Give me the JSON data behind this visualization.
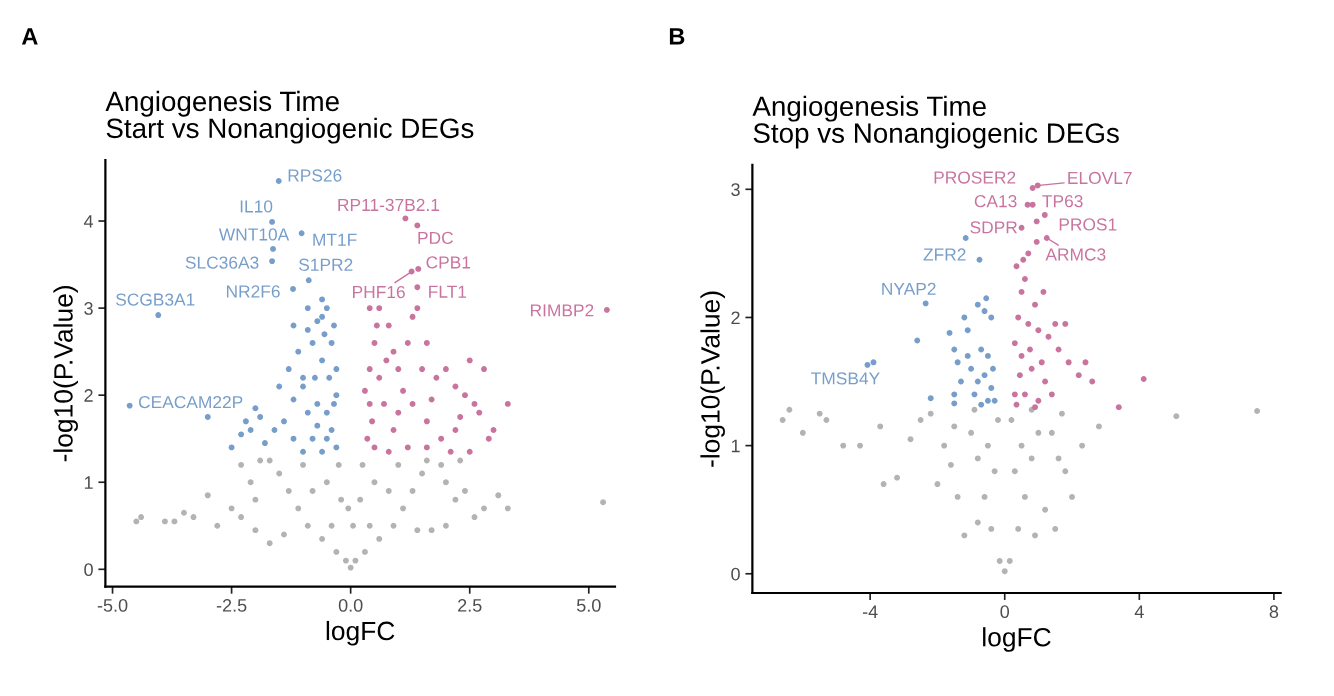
{
  "chart_data": [
    {
      "type": "scatter",
      "title": "Angiogenesis Time\nStart vs Nonangiogenic DEGs",
      "xlabel": "logFC",
      "ylabel": "-log10(P.Value)",
      "xlim": [
        -5.15,
        5.55
      ],
      "ylim": [
        -0.2,
        4.7
      ],
      "xticks": [
        {
          "value": -5,
          "label": "-5.0"
        },
        {
          "value": -2.5,
          "label": "-2.5"
        },
        {
          "value": 0,
          "label": "0.0"
        },
        {
          "value": 2.5,
          "label": "2.5"
        },
        {
          "value": 5,
          "label": "5.0"
        }
      ],
      "yticks": [
        0,
        1,
        2,
        3,
        4
      ],
      "grid": false,
      "legend": false,
      "marker": "circle",
      "series": [
        {
          "color": "#b3b3b3",
          "x": [
            0.0,
            -0.1,
            0.1,
            -0.3,
            0.3,
            -0.6,
            0.6,
            -0.9,
            0.9,
            -1.1,
            1.1,
            -1.3,
            1.3,
            -1.5,
            1.5,
            -1.7,
            1.6,
            -0.2,
            0.2,
            -0.25,
            0.25,
            -0.5,
            0.5,
            -0.4,
            0.4,
            -1.0,
            1.0,
            -0.8,
            0.8,
            -2.1,
            -2.0,
            -2.3,
            -2.5,
            -3.0,
            -3.3,
            -3.7,
            -4.4,
            -4.5,
            -3.9,
            -3.5,
            -2.0,
            -1.7,
            2.0,
            2.2,
            2.4,
            2.6,
            2.8,
            3.1,
            3.3,
            2.0,
            1.7,
            5.3,
            -2.8,
            1.9,
            2.3,
            -0.05,
            0.05,
            -1.4,
            1.4,
            -1.9,
            -2.3
          ],
          "values": [
            0.02,
            0.1,
            0.1,
            0.2,
            0.2,
            0.35,
            0.35,
            0.5,
            0.5,
            0.7,
            0.7,
            0.9,
            0.9,
            1.1,
            1.1,
            1.25,
            1.25,
            0.8,
            0.8,
            1.2,
            1.2,
            1.0,
            1.0,
            0.5,
            0.5,
            1.2,
            1.2,
            0.9,
            0.9,
            1.0,
            0.8,
            0.6,
            0.7,
            0.85,
            0.6,
            0.55,
            0.6,
            0.55,
            0.55,
            0.65,
            0.45,
            0.3,
            1.0,
            0.8,
            0.9,
            0.6,
            0.7,
            0.85,
            0.7,
            0.5,
            0.45,
            0.77,
            0.5,
            1.2,
            1.25,
            0.7,
            0.5,
            0.4,
            0.45,
            1.25,
            1.2
          ]
        },
        {
          "color": "#779ecb",
          "x": [
            -0.5,
            -0.6,
            -0.7,
            -0.55,
            -0.4,
            -0.8,
            -0.9,
            -1.2,
            -1.1,
            -1.3,
            -0.3,
            -0.45,
            -0.6,
            -0.75,
            -1.0,
            -1.5,
            -1.2,
            -0.35,
            -0.5,
            -0.7,
            -0.9,
            -1.4,
            -1.6,
            -2.0,
            -2.1,
            -2.3,
            -2.5,
            -1.8,
            -1.2,
            -0.8,
            -0.5,
            -0.3,
            -0.6,
            -1.0,
            -2.2,
            -3.0,
            -1.9,
            -0.4,
            -0.3,
            -0.35,
            -0.6,
            -0.9,
            -1.0,
            -0.7,
            -1.51,
            -1.65,
            -1.63,
            -1.03,
            -1.65,
            -0.88,
            -1.21,
            -4.04,
            -4.64
          ],
          "values": [
            3.0,
            2.9,
            2.85,
            2.7,
            2.6,
            2.6,
            2.75,
            2.8,
            2.5,
            2.3,
            2.3,
            2.2,
            2.4,
            2.2,
            2.2,
            2.1,
            1.95,
            1.9,
            1.8,
            1.9,
            1.8,
            1.7,
            1.6,
            1.85,
            1.6,
            1.55,
            1.4,
            1.45,
            1.5,
            1.5,
            1.5,
            1.4,
            1.35,
            1.35,
            1.7,
            1.75,
            1.75,
            1.6,
            2.0,
            2.8,
            3.1,
            3.0,
            2.1,
            1.65,
            4.46,
            3.99,
            3.68,
            3.86,
            3.54,
            3.32,
            3.22,
            2.92,
            1.88
          ]
        },
        {
          "color": "#c9739f",
          "x": [
            0.4,
            0.6,
            0.8,
            0.9,
            0.5,
            0.4,
            0.6,
            0.75,
            1.0,
            1.2,
            1.3,
            1.4,
            1.6,
            1.5,
            1.8,
            2.0,
            2.2,
            2.4,
            2.6,
            2.8,
            2.5,
            3.3,
            3.0,
            2.9,
            2.7,
            2.2,
            1.9,
            1.6,
            1.3,
            1.0,
            0.7,
            0.4,
            0.35,
            0.5,
            0.8,
            1.2,
            1.6,
            2.1,
            2.5,
            0.45,
            0.9,
            1.1,
            0.55,
            0.3,
            1.7,
            2.3,
            1.15,
            1.4,
            1.42,
            1.28,
            1.4,
            5.38
          ],
          "values": [
            3.0,
            3.0,
            2.8,
            2.5,
            2.6,
            2.3,
            2.2,
            2.4,
            2.3,
            2.6,
            2.9,
            3.0,
            2.6,
            2.3,
            2.2,
            2.3,
            2.1,
            2.0,
            1.9,
            2.3,
            2.4,
            1.9,
            1.6,
            1.5,
            1.8,
            1.6,
            1.5,
            1.7,
            1.9,
            1.8,
            1.9,
            1.9,
            1.5,
            1.4,
            1.35,
            1.4,
            1.4,
            1.35,
            1.35,
            1.7,
            1.6,
            2.05,
            2.8,
            2.05,
            1.95,
            1.75,
            4.03,
            3.95,
            3.45,
            3.42,
            3.24,
            2.98
          ]
        }
      ],
      "annotations": [
        "A",
        {
          "text": "RPS26",
          "x": -1.51,
          "y": 4.46
        },
        {
          "text": "IL10",
          "x": -1.65,
          "y": 3.99
        },
        {
          "text": "WNT10A",
          "x": -1.63,
          "y": 3.68
        },
        {
          "text": "MT1F",
          "x": -1.03,
          "y": 3.86
        },
        {
          "text": "SLC36A3",
          "x": -1.65,
          "y": 3.54
        },
        {
          "text": "S1PR2",
          "x": -0.88,
          "y": 3.32
        },
        {
          "text": "NR2F6",
          "x": -1.21,
          "y": 3.22
        },
        {
          "text": "SCGB3A1",
          "x": -4.04,
          "y": 2.92
        },
        {
          "text": "CEACAM22P",
          "x": -4.64,
          "y": 1.88
        },
        {
          "text": "RP11-37B2.1",
          "x": 1.15,
          "y": 4.03
        },
        {
          "text": "PDC",
          "x": 1.4,
          "y": 3.95
        },
        {
          "text": "CPB1",
          "x": 1.42,
          "y": 3.45
        },
        {
          "text": "PHF16",
          "x": 1.28,
          "y": 3.42
        },
        {
          "text": "FLT1",
          "x": 1.4,
          "y": 3.24
        },
        {
          "text": "RIMBP2",
          "x": 5.38,
          "y": 2.98
        }
      ]
    },
    {
      "type": "scatter",
      "title": "Angiogenesis Time\nStop vs Nonangiogenic DEGs",
      "xlabel": "logFC",
      "ylabel": "-log10(P.Value)",
      "xlim": [
        -7.5,
        8.2
      ],
      "ylim": [
        -0.15,
        3.19
      ],
      "xticks": [
        -4,
        0,
        4,
        8
      ],
      "yticks": [
        0,
        1,
        2,
        3
      ],
      "grid": false,
      "legend": false,
      "marker": "circle",
      "series": [
        {
          "color": "#b3b3b3",
          "x": [
            0.0,
            -0.15,
            0.15,
            -0.4,
            0.4,
            -0.6,
            0.6,
            -0.8,
            0.8,
            -1.0,
            1.0,
            -0.9,
            0.8,
            -0.3,
            0.3,
            -0.2,
            0.2,
            -0.5,
            0.5,
            -1.4,
            -1.6,
            -1.8,
            -2.0,
            -2.2,
            -2.5,
            -3.2,
            -3.6,
            -3.7,
            -4.3,
            -4.8,
            -5.3,
            -6.0,
            -6.6,
            -6.4,
            -5.5,
            1.4,
            1.6,
            1.8,
            2.0,
            2.3,
            2.8,
            5.1,
            7.5,
            1.2,
            1.5,
            -1.2,
            -0.8,
            0.9,
            1.7,
            -1.5,
            -2.8
          ],
          "values": [
            0.02,
            0.1,
            0.1,
            0.35,
            0.35,
            0.6,
            0.6,
            0.9,
            0.9,
            1.1,
            1.1,
            1.28,
            1.28,
            0.8,
            0.8,
            1.2,
            1.2,
            1.0,
            1.0,
            0.6,
            0.85,
            1.0,
            0.7,
            1.25,
            1.2,
            0.75,
            0.7,
            1.15,
            1.0,
            1.0,
            1.2,
            1.1,
            1.2,
            1.28,
            1.25,
            1.1,
            0.9,
            0.8,
            0.6,
            1.0,
            1.15,
            1.23,
            1.27,
            0.5,
            0.35,
            0.3,
            0.4,
            0.3,
            1.25,
            1.15,
            1.05
          ]
        },
        {
          "color": "#779ecb",
          "x": [
            -1.2,
            -0.6,
            -0.4,
            -0.8,
            -1.1,
            -1.5,
            -0.7,
            -0.5,
            -1.0,
            -0.6,
            -1.3,
            -0.8,
            -0.4,
            -1.5,
            -0.9,
            -0.5,
            -1.5,
            -0.7,
            -0.3,
            -2.2,
            -2.6,
            -0.75,
            -1.4,
            -0.35,
            -1.1,
            -0.55,
            -1.64,
            -3.9,
            -1.16,
            -2.35,
            -4.08
          ],
          "values": [
            2.0,
            2.05,
            2.0,
            2.1,
            1.9,
            1.75,
            1.75,
            1.7,
            1.6,
            1.55,
            1.5,
            1.5,
            1.45,
            1.4,
            1.4,
            1.35,
            1.33,
            1.32,
            1.35,
            1.37,
            1.82,
            2.45,
            1.65,
            1.6,
            1.7,
            2.15,
            1.88,
            1.65,
            2.62,
            2.11,
            1.63
          ]
        },
        {
          "color": "#c9739f",
          "x": [
            0.35,
            0.6,
            0.7,
            0.5,
            0.9,
            0.4,
            0.7,
            1.0,
            1.3,
            1.5,
            1.8,
            1.6,
            1.9,
            2.2,
            2.6,
            4.13,
            3.39,
            2.4,
            0.3,
            0.5,
            0.8,
            1.2,
            0.3,
            0.6,
            1.0,
            1.4,
            0.45,
            0.75,
            1.1,
            0.35,
            0.9,
            1.15,
            0.5,
            0.55,
            0.95,
            0.98,
            0.83,
            0.68,
            0.83,
            0.95,
            1.19,
            1.25
          ],
          "values": [
            2.4,
            2.3,
            2.5,
            2.2,
            2.1,
            2.0,
            1.95,
            1.9,
            1.85,
            1.95,
            1.95,
            1.75,
            1.65,
            1.55,
            1.5,
            1.52,
            1.3,
            1.65,
            1.8,
            1.7,
            1.6,
            1.5,
            1.4,
            1.4,
            1.35,
            1.4,
            1.55,
            1.75,
            1.65,
            1.32,
            1.3,
            2.2,
            2.7,
            2.45,
            2.75,
            3.03,
            3.01,
            2.88,
            2.88,
            2.59,
            2.8,
            2.62
          ]
        }
      ],
      "annotations": [
        "B",
        {
          "text": "PROSER2",
          "x": 0.83,
          "y": 3.01
        },
        {
          "text": "ELOVL7",
          "x": 0.98,
          "y": 3.03
        },
        {
          "text": "CA13",
          "x": 0.68,
          "y": 2.88
        },
        {
          "text": "TP63",
          "x": 0.83,
          "y": 2.88
        },
        {
          "text": "SDPR",
          "x": 0.95,
          "y": 2.59
        },
        {
          "text": "PROS1",
          "x": 1.19,
          "y": 2.8
        },
        {
          "text": "ARMC3",
          "x": 1.25,
          "y": 2.62
        },
        {
          "text": "ZFR2",
          "x": -1.16,
          "y": 2.62
        },
        {
          "text": "NYAP2",
          "x": -2.35,
          "y": 2.11
        },
        {
          "text": "TMSB4Y",
          "x": -4.08,
          "y": 1.63
        }
      ]
    }
  ]
}
